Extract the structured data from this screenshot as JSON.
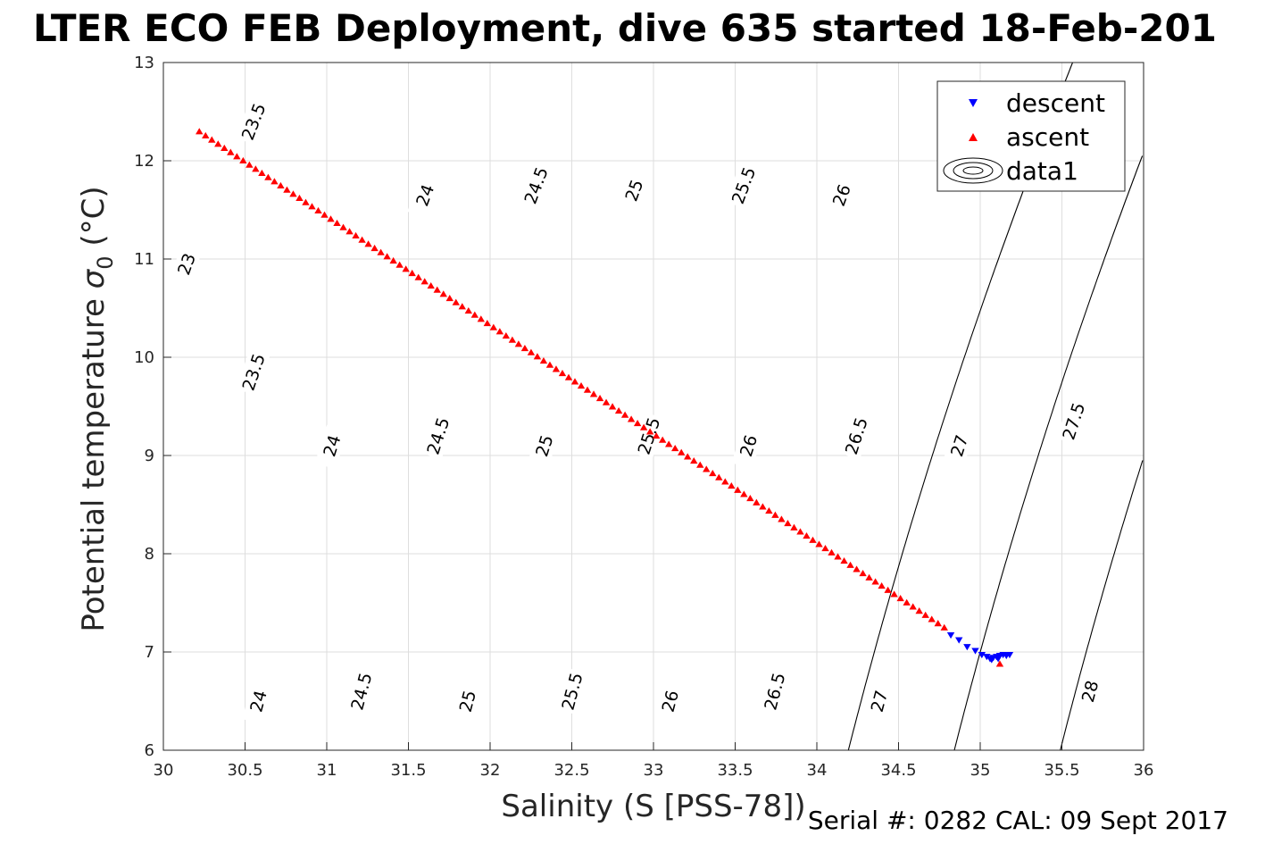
{
  "chart_data": {
    "type": "scatter",
    "title": "LTER ECO FEB Deployment, dive 635 started 18-Feb-201",
    "xlabel": "Salinity (S [PSS-78])",
    "ylabel_text": "Potential temperature ",
    "ylabel_symbol": "σ",
    "ylabel_subscript": "0",
    "ylabel_unit": " (°C)",
    "xlim": [
      30,
      36
    ],
    "ylim": [
      6,
      13
    ],
    "xticks": [
      "30",
      "30.5",
      "31",
      "31.5",
      "32",
      "32.5",
      "33",
      "33.5",
      "34",
      "34.5",
      "35",
      "35.5",
      "36"
    ],
    "yticks": [
      "6",
      "7",
      "8",
      "9",
      "10",
      "11",
      "12",
      "13"
    ],
    "grid": true,
    "legend": {
      "placement": "top-right",
      "entries": [
        {
          "label": "descent",
          "marker": "triangle-down",
          "color": "#0000ff"
        },
        {
          "label": "ascent",
          "marker": "triangle-up",
          "color": "#ff0000"
        },
        {
          "label": "data1",
          "marker": "contour",
          "color": "#000000"
        }
      ]
    },
    "series": [
      {
        "name": "ascent",
        "color": "#ff0000",
        "marker": "triangle-up",
        "start": [
          30.22,
          12.3
        ],
        "end": [
          34.78,
          7.25
        ],
        "count": 120,
        "extra_points": [
          [
            35.12,
            6.88
          ]
        ]
      },
      {
        "name": "descent",
        "color": "#0000ff",
        "marker": "triangle-down",
        "points": [
          [
            34.82,
            7.17
          ],
          [
            34.87,
            7.12
          ],
          [
            34.92,
            7.05
          ],
          [
            34.97,
            7.01
          ],
          [
            35.01,
            6.97
          ],
          [
            35.04,
            6.95
          ],
          [
            35.06,
            6.93
          ],
          [
            35.08,
            6.94
          ],
          [
            35.1,
            6.95
          ],
          [
            35.12,
            6.96
          ],
          [
            35.14,
            6.97
          ],
          [
            35.16,
            6.96
          ],
          [
            35.18,
            6.97
          ],
          [
            35.07,
            6.92
          ],
          [
            35.11,
            6.93
          ]
        ]
      }
    ],
    "contours": {
      "name": "data1",
      "levels": [
        23,
        23.5,
        24,
        24.5,
        25,
        25.5,
        26,
        26.5,
        27,
        27.5,
        28
      ],
      "line_label_levels": [
        "23",
        "23.5",
        "24",
        "24.5",
        "25",
        "25.5",
        "26",
        "26.5",
        "27",
        "27.5",
        "28"
      ],
      "labels": [
        {
          "text": "23",
          "s": 30.14,
          "t": 10.95
        },
        {
          "text": "23.5",
          "s": 30.55,
          "t": 12.4
        },
        {
          "text": "23.5",
          "s": 30.55,
          "t": 9.85
        },
        {
          "text": "24",
          "s": 31.6,
          "t": 11.65
        },
        {
          "text": "24",
          "s": 31.03,
          "t": 9.1
        },
        {
          "text": "24",
          "s": 30.58,
          "t": 6.5
        },
        {
          "text": "24.5",
          "s": 32.28,
          "t": 11.75
        },
        {
          "text": "24.5",
          "s": 31.68,
          "t": 9.2
        },
        {
          "text": "24.5",
          "s": 31.21,
          "t": 6.6
        },
        {
          "text": "25",
          "s": 32.88,
          "t": 11.7
        },
        {
          "text": "25",
          "s": 32.33,
          "t": 9.1
        },
        {
          "text": "25",
          "s": 31.86,
          "t": 6.5
        },
        {
          "text": "25.5",
          "s": 33.55,
          "t": 11.75
        },
        {
          "text": "25.5",
          "s": 32.97,
          "t": 9.2
        },
        {
          "text": "25.5",
          "s": 32.5,
          "t": 6.6
        },
        {
          "text": "26",
          "s": 34.15,
          "t": 11.65
        },
        {
          "text": "26",
          "s": 33.58,
          "t": 9.1
        },
        {
          "text": "26",
          "s": 33.1,
          "t": 6.5
        },
        {
          "text": "26.5",
          "s": 34.24,
          "t": 9.2
        },
        {
          "text": "26.5",
          "s": 33.74,
          "t": 6.6
        },
        {
          "text": "27",
          "s": 34.87,
          "t": 9.1
        },
        {
          "text": "27",
          "s": 34.38,
          "t": 6.5
        },
        {
          "text": "27.5",
          "s": 35.57,
          "t": 9.35
        },
        {
          "text": "28",
          "s": 35.67,
          "t": 6.6
        }
      ]
    }
  },
  "footer": {
    "serial": "Serial #: 0282  CAL: 09 Sept 2017"
  }
}
